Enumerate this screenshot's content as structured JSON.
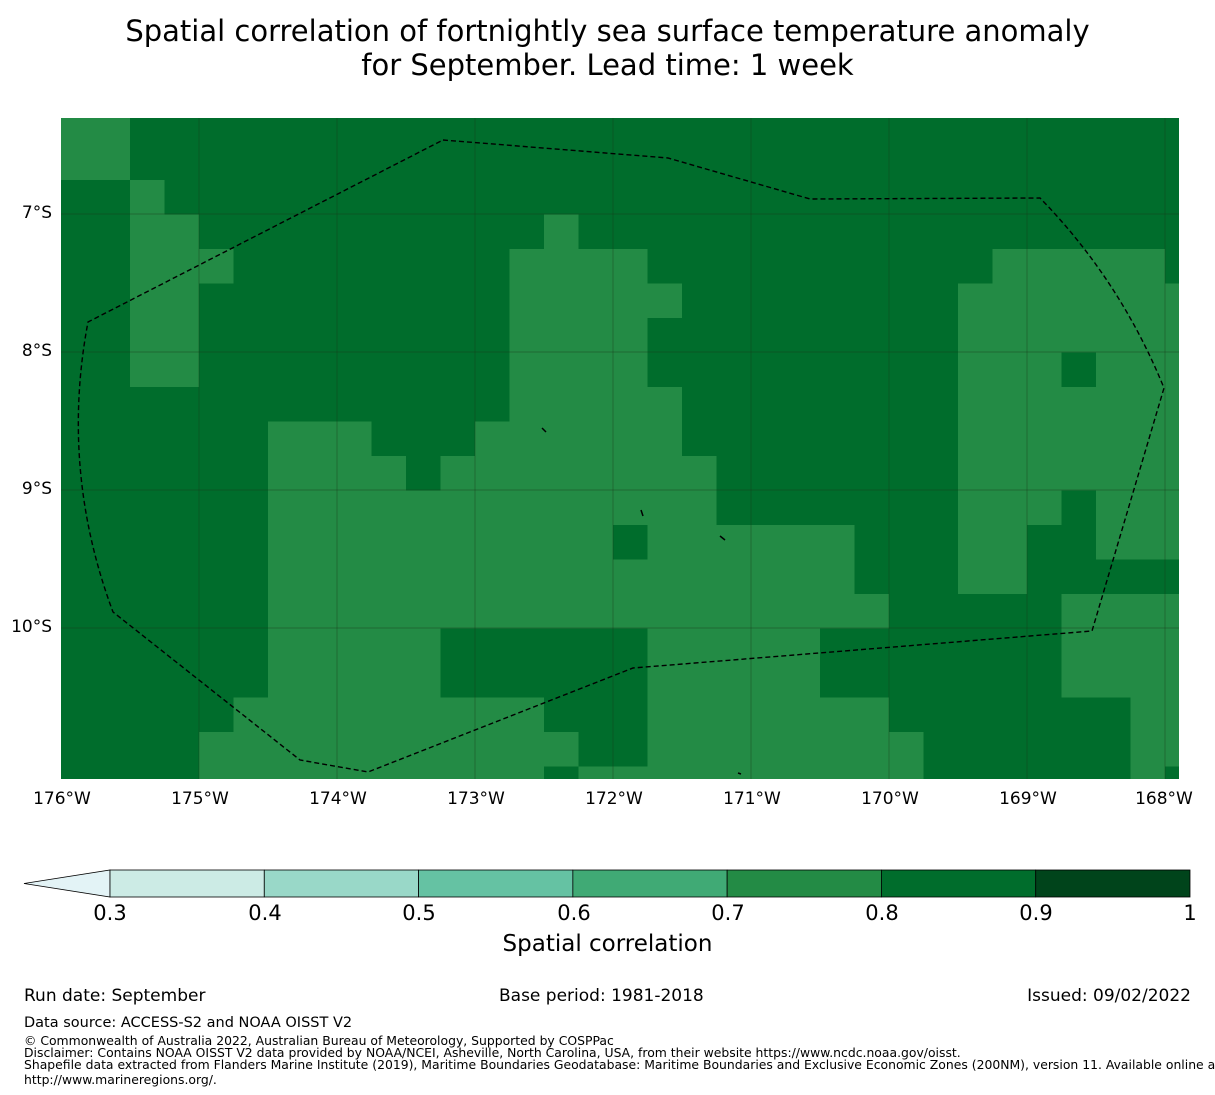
{
  "title": {
    "line1": "Spatial correlation of fortnightly sea surface temperature anomaly",
    "line2": "for September. Lead time: 1 week"
  },
  "map": {
    "lat_labels": [
      "7°S",
      "8°S",
      "9°S",
      "10°S"
    ],
    "lon_labels": [
      "176°W",
      "175°W",
      "174°W",
      "173°W",
      "172°W",
      "171°W",
      "170°W",
      "169°W",
      "168°W"
    ],
    "lon_range": [
      -176,
      -167.9
    ],
    "lat_range": [
      -11.15,
      -6.3
    ],
    "grid_resolution_deg": 0.25,
    "note": "Cells of correlation class 0.7-0.8 listed per row; all other cells are class 0.8-0.9",
    "background_class": 6,
    "rows_class_0_7_to_0_8": [
      [
        [
          0,
          2
        ]
      ],
      [
        [
          2,
          3
        ]
      ],
      [
        [
          2,
          4
        ],
        [
          14,
          15
        ]
      ],
      [
        [
          2,
          5
        ],
        [
          13,
          17
        ],
        [
          27,
          32
        ]
      ],
      [
        [
          2,
          4
        ],
        [
          13,
          18
        ],
        [
          26,
          32
        ],
        [
          32,
          33
        ]
      ],
      [
        [
          2,
          4
        ],
        [
          13,
          17
        ],
        [
          26,
          32
        ],
        [
          32,
          33
        ]
      ],
      [
        [
          2,
          4
        ],
        [
          13,
          17
        ],
        [
          26,
          29
        ],
        [
          30,
          33
        ]
      ],
      [
        [
          13,
          18
        ],
        [
          26,
          29
        ],
        [
          29,
          33
        ]
      ],
      [
        [
          6,
          9
        ],
        [
          12,
          18
        ],
        [
          26,
          29
        ],
        [
          29,
          33
        ]
      ],
      [
        [
          6,
          10
        ],
        [
          11,
          19
        ],
        [
          26,
          33
        ]
      ],
      [
        [
          6,
          11
        ],
        [
          11,
          19
        ],
        [
          26,
          29
        ],
        [
          30,
          33
        ]
      ],
      [
        [
          6,
          12
        ],
        [
          12,
          16
        ],
        [
          17,
          23
        ],
        [
          26,
          28
        ],
        [
          30,
          33
        ]
      ],
      [
        [
          6,
          18
        ],
        [
          18,
          23
        ],
        [
          26,
          28
        ]
      ],
      [
        [
          6,
          17
        ],
        [
          17,
          24
        ],
        [
          29,
          33
        ]
      ],
      [
        [
          6,
          11
        ],
        [
          17,
          22
        ],
        [
          29,
          33
        ]
      ],
      [
        [
          6,
          11
        ],
        [
          17,
          22
        ],
        [
          29,
          33
        ]
      ],
      [
        [
          5,
          14
        ],
        [
          17,
          24
        ],
        [
          31,
          33
        ]
      ],
      [
        [
          4,
          15
        ],
        [
          17,
          25
        ],
        [
          31,
          33
        ]
      ],
      [
        [
          4,
          14
        ],
        [
          15,
          25
        ],
        [
          31,
          32
        ]
      ]
    ]
  },
  "colorbar": {
    "title": "Spatial correlation",
    "tick_labels": [
      "0.3",
      "0.4",
      "0.5",
      "0.6",
      "0.7",
      "0.8",
      "0.9",
      "1"
    ],
    "bounds": [
      0.3,
      0.4,
      0.5,
      0.6,
      0.7,
      0.8,
      0.9,
      1.0
    ],
    "extend": "min",
    "colors": [
      "#e3f3f6",
      "#ccebe5",
      "#99d8c8",
      "#65c2a3",
      "#40aa75",
      "#238b45",
      "#006d2c",
      "#00441b"
    ]
  },
  "footer": {
    "run_date": "Run date: September",
    "base_period": "Base period: 1981-2018",
    "issued": "Issued: 09/02/2022",
    "data_source": "Data source: ACCESS-S2 and NOAA OISST V2",
    "copyright": "© Commonwealth of Australia 2022, Australian Bureau of Meteorology, Supported by COSPPac",
    "disclaimer": "Disclaimer: Contains NOAA OISST V2 data provided by NOAA/NCEI, Asheville, North Carolina, USA, from their website https://www.ncdc.noaa.gov/oisst.",
    "shapefile_line1": "Shapefile data extracted from Flanders Marine Institute (2019), Maritime Boundaries Geodatabase: Maritime Boundaries and Exclusive Economic Zones (200NM), version 11. Available online at",
    "shapefile_line2": "http://www.marineregions.org/."
  }
}
